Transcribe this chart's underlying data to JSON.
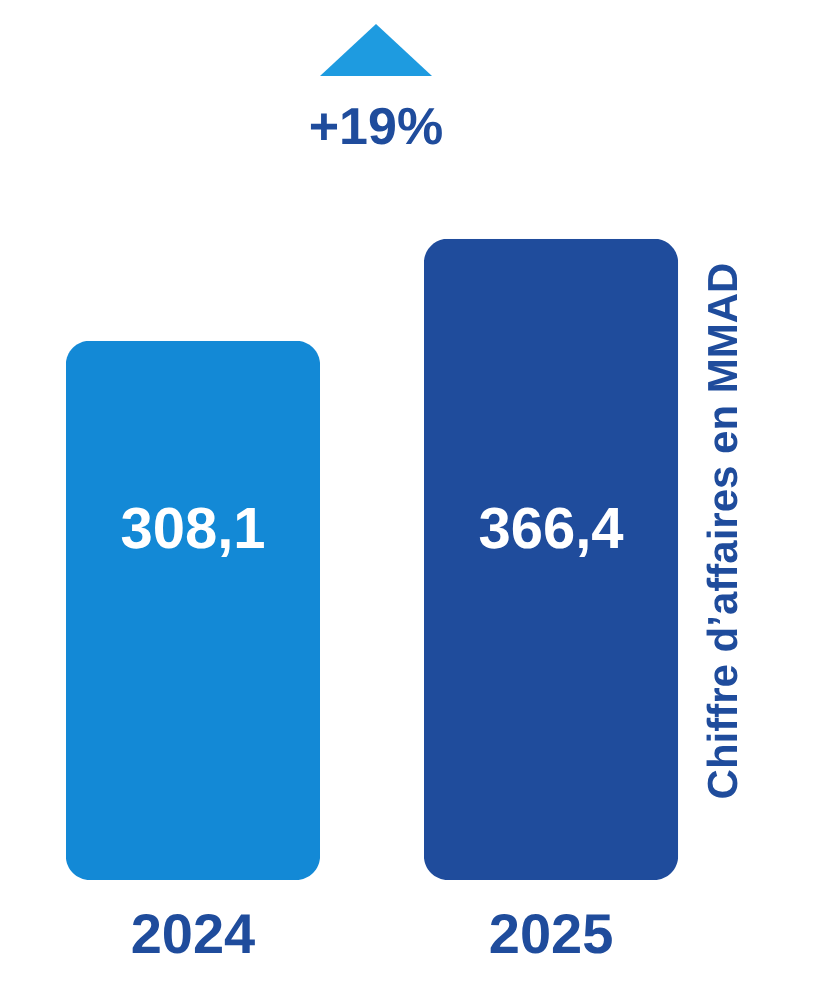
{
  "chart_data": {
    "type": "bar",
    "ylabel": "Chiffre d’affaires en MMAD",
    "categories": [
      "2024",
      "2025"
    ],
    "values": [
      308.1,
      366.4
    ],
    "colors": [
      "#1389d6",
      "#1f4c9c"
    ],
    "value_labels": [
      "308,1",
      "366,4"
    ],
    "annotations": [
      "+19%"
    ]
  }
}
